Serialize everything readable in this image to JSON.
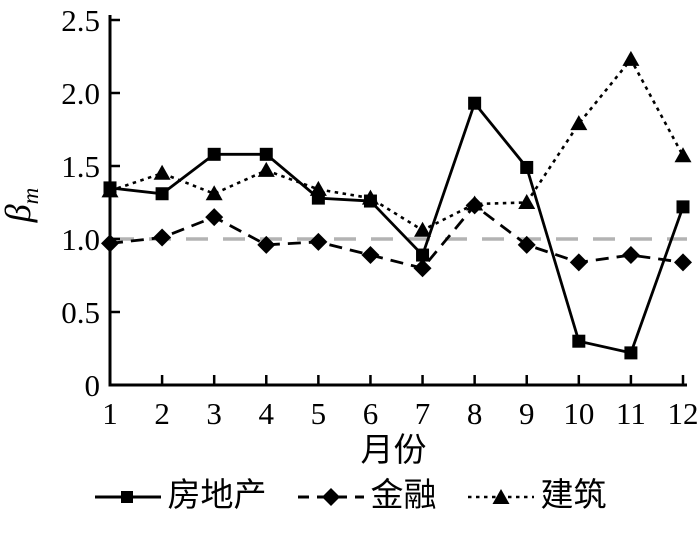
{
  "figure": {
    "background": "#ffffff",
    "axis_color": "#000000",
    "series_color": "#000000",
    "reference_color": "#b3b3b3"
  },
  "chart_data": {
    "type": "line",
    "title": "",
    "xlabel": "月份",
    "ylabel": {
      "symbol": "β",
      "subscript": "m"
    },
    "x": [
      1,
      2,
      3,
      4,
      5,
      6,
      7,
      8,
      9,
      10,
      11,
      12
    ],
    "xtick_labels": [
      "1",
      "2",
      "3",
      "4",
      "5",
      "6",
      "7",
      "8",
      "9",
      "10",
      "11",
      "12"
    ],
    "ylim": [
      0,
      2.5
    ],
    "yticks": [
      0,
      0.5,
      1.0,
      1.5,
      2.0,
      2.5
    ],
    "ytick_labels": [
      "0",
      "0.5",
      "1.0",
      "1.5",
      "2.0",
      "2.5"
    ],
    "grid": false,
    "legend_position": "bottom",
    "reference_line": {
      "value": 1.0,
      "style": "dashed",
      "color": "#b3b3b3"
    },
    "series": [
      {
        "key": "real-estate",
        "name": "房地产",
        "marker": "square",
        "line_style": "solid",
        "color": "#000000",
        "values": [
          1.35,
          1.31,
          1.58,
          1.58,
          1.28,
          1.26,
          0.89,
          1.93,
          1.49,
          0.3,
          0.22,
          1.22
        ]
      },
      {
        "key": "finance",
        "name": "金融",
        "marker": "diamond",
        "line_style": "dashed",
        "color": "#000000",
        "values": [
          0.97,
          1.01,
          1.15,
          0.96,
          0.98,
          0.89,
          0.8,
          1.23,
          0.96,
          0.84,
          0.89,
          0.84
        ]
      },
      {
        "key": "construction",
        "name": "建筑",
        "marker": "triangle",
        "line_style": "dotted",
        "color": "#000000",
        "values": [
          1.33,
          1.45,
          1.31,
          1.47,
          1.34,
          1.28,
          1.06,
          1.24,
          1.25,
          1.79,
          2.23,
          1.57
        ]
      }
    ]
  }
}
